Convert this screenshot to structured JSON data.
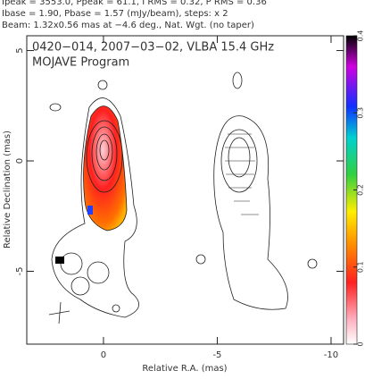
{
  "chart_data": {
    "type": "contour-map",
    "header": [
      "Ipeak = 3553.0, Ppeak = 61.1, I RMS = 0.32, P RMS = 0.36",
      "Ibase = 1.90, Pbase = 1.57 (mJy/beam), steps: x 2",
      "Beam: 1.32x0.56 mas at −4.6 deg., Nat. Wgt. (no taper)"
    ],
    "title": "0420−014, 2007−03−02, VLBA 15.4 GHz",
    "subtitle": "MOJAVE Program",
    "xlabel": "Relative R.A. (mas)",
    "ylabel": "Relative Declination (mas)",
    "xlim": [
      3.37,
      -10.55
    ],
    "xticks": [
      0,
      -5,
      -10
    ],
    "ylim": [
      -8.3,
      5.67
    ],
    "yticks": [
      -5,
      0,
      5
    ],
    "clim": [
      0,
      0.4
    ],
    "cticks": [
      0,
      0.1,
      0.2,
      0.3,
      0.4
    ]
  }
}
